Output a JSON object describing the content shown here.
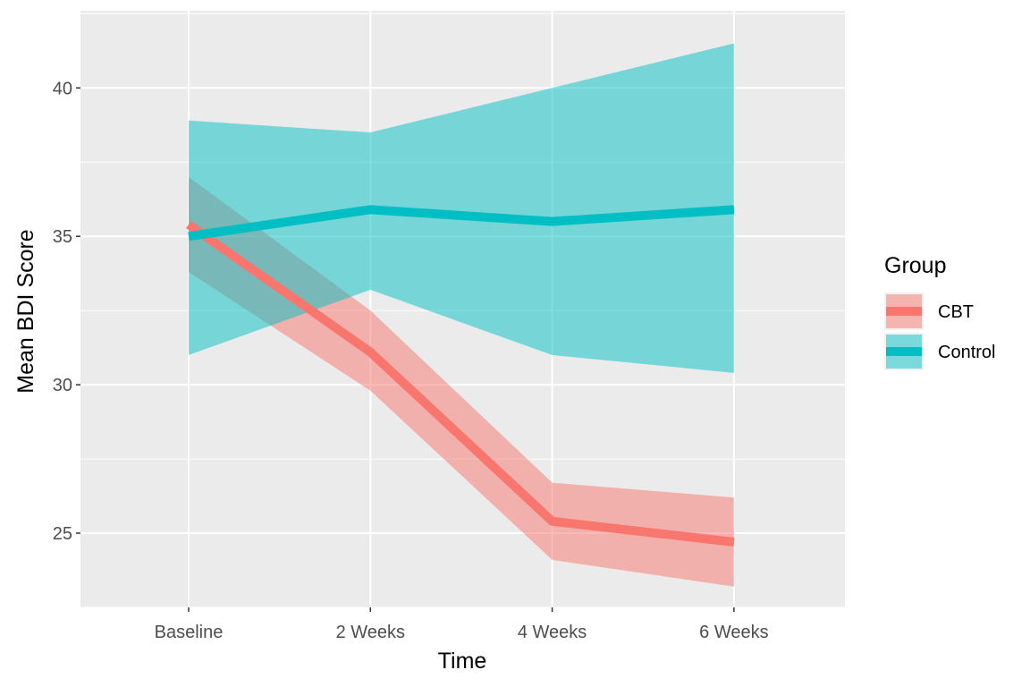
{
  "chart_data": {
    "type": "line",
    "title": "",
    "xlabel": "Time",
    "ylabel": "Mean BDI Score",
    "categories": [
      "Baseline",
      "2 Weeks",
      "4 Weeks",
      "6 Weeks"
    ],
    "ylim": [
      22.5,
      42.6
    ],
    "yticks": [
      25,
      30,
      35,
      40
    ],
    "grid": true,
    "legend": {
      "title": "Group",
      "position": "right"
    },
    "series": [
      {
        "name": "CBT",
        "color": "#F8766D",
        "values": [
          35.4,
          31.1,
          25.4,
          24.7
        ],
        "lower": [
          33.8,
          29.8,
          24.1,
          23.2
        ],
        "upper": [
          37.0,
          32.5,
          26.7,
          26.2
        ]
      },
      {
        "name": "Control",
        "color": "#00BFC4",
        "values": [
          35.0,
          35.9,
          35.5,
          35.9
        ],
        "lower": [
          31.0,
          33.2,
          31.0,
          30.4
        ],
        "upper": [
          38.9,
          38.5,
          40.0,
          41.5
        ]
      }
    ]
  }
}
